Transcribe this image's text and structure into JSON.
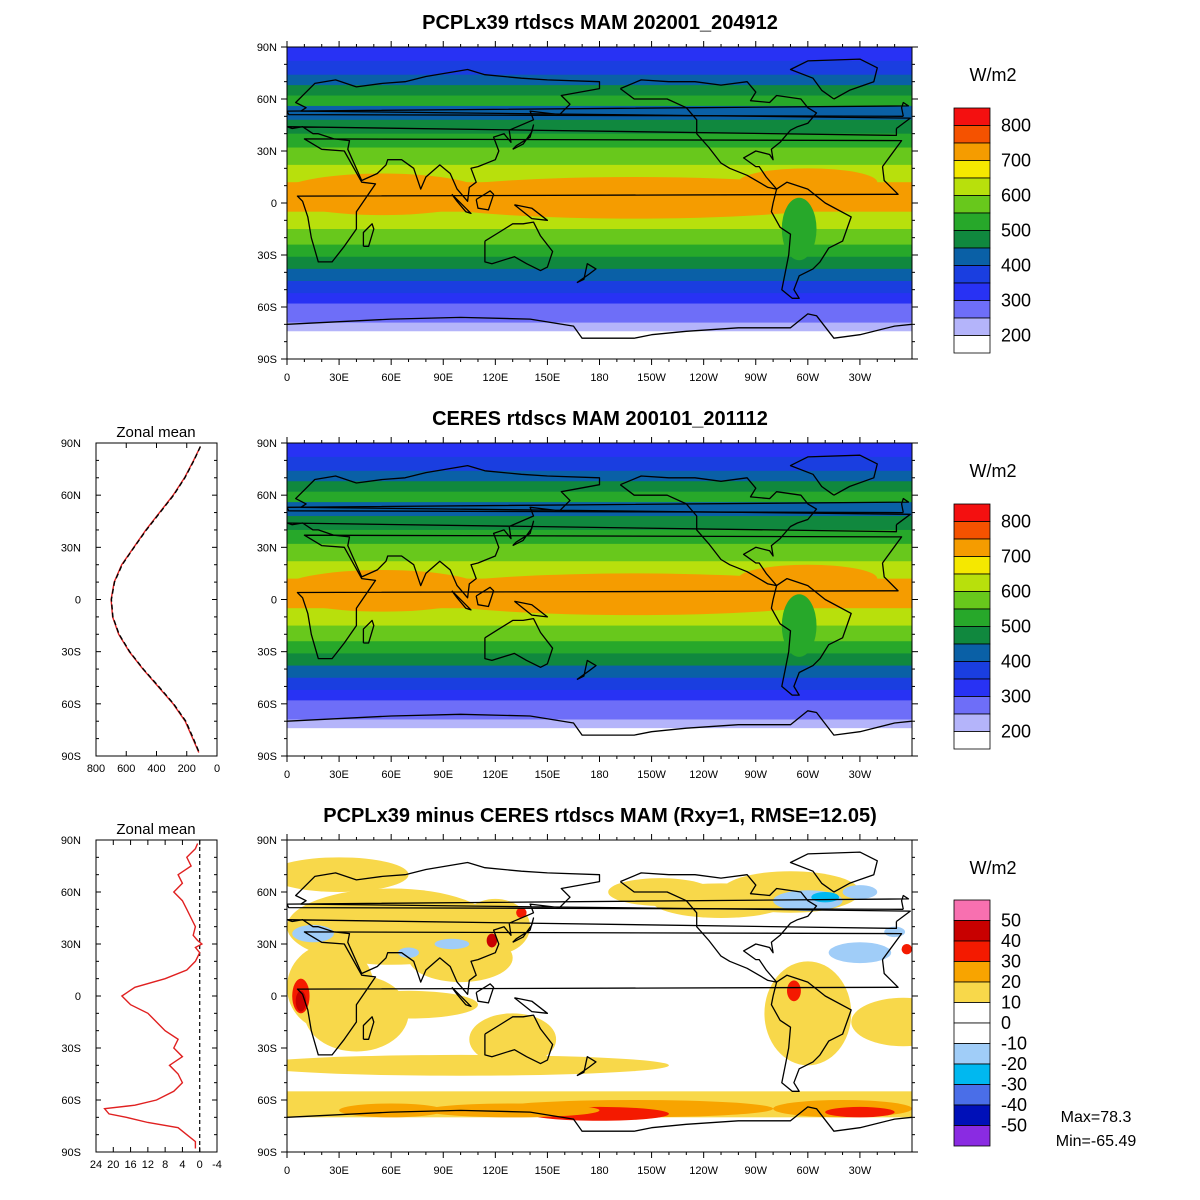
{
  "colors": {
    "abs_scale": [
      "#ffffff",
      "#b4b4fa",
      "#6e6ef8",
      "#2832f4",
      "#1a3ee0",
      "#0a60a6",
      "#10883e",
      "#27a82a",
      "#68c81c",
      "#b8e00c",
      "#f5e800",
      "#f59c00",
      "#f55200",
      "#f41010"
    ],
    "diff_scale": [
      "#8a2be2",
      "#0010b8",
      "#4a6ee8",
      "#00b8f0",
      "#a0cdf8",
      "#ffffff",
      "#ffffff",
      "#f8d84a",
      "#f8a400",
      "#f41a00",
      "#c80000",
      "#f870b0"
    ],
    "zonal_model": "#e02020",
    "zonal_obs": "#000000"
  },
  "chart_data": [
    {
      "id": "model",
      "type": "heatmap",
      "title": "PCPLx39 rtdscs MAM 202001_204912",
      "x_ticks": [
        "0",
        "30E",
        "60E",
        "90E",
        "120E",
        "150E",
        "180",
        "150W",
        "120W",
        "90W",
        "60W",
        "30W"
      ],
      "y_ticks": [
        "90N",
        "60N",
        "30N",
        "0",
        "30S",
        "60S",
        "90S"
      ],
      "colorbar": {
        "unit": "W/m2",
        "labels": [
          "200",
          "300",
          "400",
          "500",
          "600",
          "700",
          "800"
        ],
        "levels": [
          200,
          250,
          300,
          350,
          400,
          450,
          500,
          550,
          600,
          650,
          700,
          750,
          800
        ]
      },
      "zonal_profile_values_by_lat": [
        [
          85,
          170
        ],
        [
          60,
          290
        ],
        [
          30,
          530
        ],
        [
          10,
          690
        ],
        [
          0,
          720
        ],
        [
          -10,
          700
        ],
        [
          -30,
          560
        ],
        [
          -50,
          330
        ],
        [
          -60,
          240
        ],
        [
          -75,
          140
        ]
      ]
    },
    {
      "id": "obs",
      "type": "heatmap",
      "title": "CERES rtdscs MAM 200101_201112",
      "x_ticks": [
        "0",
        "30E",
        "60E",
        "90E",
        "120E",
        "150E",
        "180",
        "150W",
        "120W",
        "90W",
        "60W",
        "30W"
      ],
      "y_ticks": [
        "90N",
        "60N",
        "30N",
        "0",
        "30S",
        "60S",
        "90S"
      ],
      "colorbar": {
        "unit": "W/m2",
        "labels": [
          "200",
          "300",
          "400",
          "500",
          "600",
          "700",
          "800"
        ],
        "levels": [
          200,
          250,
          300,
          350,
          400,
          450,
          500,
          550,
          600,
          650,
          700,
          750,
          800
        ]
      }
    },
    {
      "id": "zonal_mean_abs",
      "type": "line",
      "title": "Zonal mean",
      "x_ticks": [
        "800",
        "600",
        "400",
        "200",
        "0"
      ],
      "xlim": [
        800,
        0
      ],
      "y_ticks": [
        "90N",
        "60N",
        "30N",
        "0",
        "30S",
        "60S",
        "90S"
      ],
      "ylim": [
        -90,
        90
      ],
      "series": [
        {
          "lat": [
            88,
            80,
            70,
            60,
            50,
            40,
            30,
            20,
            10,
            0,
            -10,
            -20,
            -30,
            -40,
            -50,
            -60,
            -70,
            -80,
            -88
          ],
          "values": [
            110,
            155,
            215,
            290,
            380,
            470,
            550,
            630,
            680,
            700,
            690,
            650,
            580,
            490,
            390,
            290,
            210,
            160,
            120
          ]
        },
        {
          "lat": [
            88,
            80,
            70,
            60,
            50,
            40,
            30,
            20,
            10,
            0,
            -10,
            -20,
            -30,
            -40,
            -50,
            -60,
            -70,
            -80,
            -88
          ],
          "values": [
            110,
            152,
            212,
            287,
            377,
            467,
            548,
            627,
            678,
            698,
            688,
            647,
            577,
            487,
            386,
            287,
            206,
            156,
            118
          ]
        }
      ]
    },
    {
      "id": "diff",
      "type": "heatmap",
      "title": "PCPLx39 minus CERES rtdscs MAM (Rxy=1, RMSE=12.05)",
      "x_ticks": [
        "0",
        "30E",
        "60E",
        "90E",
        "120E",
        "150E",
        "180",
        "150W",
        "120W",
        "90W",
        "60W",
        "30W"
      ],
      "y_ticks": [
        "90N",
        "60N",
        "30N",
        "0",
        "30S",
        "60S",
        "90S"
      ],
      "colorbar": {
        "unit": "W/m2",
        "labels": [
          "50",
          "40",
          "30",
          "20",
          "10",
          "0",
          "-10",
          "-20",
          "-30",
          "-40",
          "-50"
        ],
        "levels": [
          -50,
          -40,
          -30,
          -20,
          -10,
          0,
          10,
          20,
          30,
          40,
          50
        ]
      },
      "stats": {
        "max": "Max=78.3",
        "min": "Min=-65.49"
      }
    },
    {
      "id": "zonal_mean_diff",
      "type": "line",
      "title": "Zonal mean",
      "x_ticks": [
        "24",
        "20",
        "16",
        "12",
        "8",
        "4",
        "0",
        "-4"
      ],
      "xlim": [
        24,
        -4
      ],
      "y_ticks": [
        "90N",
        "60N",
        "30N",
        "0",
        "30S",
        "60S",
        "90S"
      ],
      "ylim": [
        -90,
        90
      ],
      "series": [
        {
          "lat": [
            88,
            85,
            80,
            75,
            70,
            65,
            60,
            55,
            50,
            45,
            40,
            35,
            32,
            30,
            28,
            25,
            20,
            15,
            10,
            5,
            0,
            -5,
            -10,
            -15,
            -20,
            -25,
            -30,
            -35,
            -40,
            -45,
            -50,
            -55,
            -60,
            -63,
            -65,
            -68,
            -70,
            -73,
            -76,
            -80,
            -84,
            -88
          ],
          "values": [
            0.5,
            1,
            3,
            2,
            5,
            4,
            6,
            4,
            3,
            2,
            1,
            1.5,
            0.5,
            -0.5,
            1,
            0,
            1,
            3,
            8,
            15,
            18,
            16,
            12,
            10,
            8,
            5,
            6,
            4,
            7,
            5,
            4,
            6,
            10,
            15,
            22,
            21,
            17,
            12,
            5,
            3,
            1,
            1
          ]
        }
      ]
    }
  ]
}
